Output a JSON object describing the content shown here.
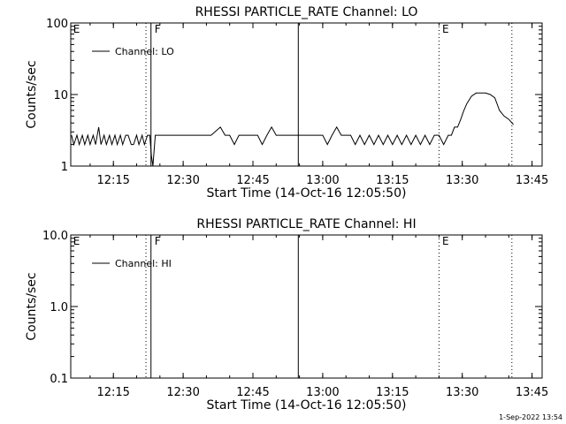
{
  "footer_date": "1-Sep-2022 13:54",
  "chart_data": [
    {
      "type": "line",
      "title": "RHESSI PARTICLE_RATE Channel: LO",
      "xlabel": "Start Time (14-Oct-16 12:05:50)",
      "ylabel": "Counts/sec",
      "yscale": "log",
      "ylim": [
        1,
        100
      ],
      "yticks": [
        {
          "value": 1,
          "label": "1"
        },
        {
          "value": 10,
          "label": "10"
        },
        {
          "value": 100,
          "label": "100"
        }
      ],
      "xlim": [
        "12:05:50",
        "13:47:10"
      ],
      "xticks": [
        "12:15",
        "12:30",
        "12:45",
        "13:00",
        "13:15",
        "13:30",
        "13:45"
      ],
      "legend": "top-left",
      "series": [
        {
          "name": "Channel: LO",
          "color": "#000000",
          "x": [
            "12:06:00",
            "12:06:30",
            "12:07:10",
            "12:07:40",
            "12:08:20",
            "12:08:50",
            "12:09:30",
            "12:10:00",
            "12:10:40",
            "12:11:10",
            "12:11:50",
            "12:12:20",
            "12:13:00",
            "12:13:30",
            "12:14:10",
            "12:14:40",
            "12:15:20",
            "12:15:50",
            "12:16:30",
            "12:17:00",
            "12:17:40",
            "12:18:10",
            "12:18:50",
            "12:19:20",
            "12:20:00",
            "12:20:30",
            "12:21:10",
            "12:21:40",
            "12:22:20",
            "12:22:50",
            "12:23:10",
            "12:23:30",
            "12:24:00",
            "12:30:00",
            "12:36:00",
            "12:38:00",
            "12:39:00",
            "12:40:00",
            "12:41:00",
            "12:42:00",
            "12:44:00",
            "12:46:00",
            "12:47:00",
            "12:48:00",
            "12:49:00",
            "12:50:00",
            "12:51:00",
            "12:52:00",
            "12:55:00",
            "13:00:00",
            "13:01:00",
            "13:02:00",
            "13:03:00",
            "13:04:00",
            "13:06:00",
            "13:07:00",
            "13:08:00",
            "13:09:00",
            "13:10:00",
            "13:11:00",
            "13:12:00",
            "13:13:00",
            "13:14:00",
            "13:15:00",
            "13:16:00",
            "13:17:00",
            "13:18:00",
            "13:19:00",
            "13:20:00",
            "13:21:00",
            "13:22:00",
            "13:23:00",
            "13:24:00",
            "13:25:00",
            "13:26:00",
            "13:27:00",
            "13:27:40",
            "13:28:20",
            "13:29:00",
            "13:29:40",
            "13:30:20",
            "13:31:00",
            "13:32:00",
            "13:33:00",
            "13:34:00",
            "13:35:00",
            "13:36:00",
            "13:37:00",
            "13:38:00",
            "13:39:00",
            "13:40:00",
            "13:41:00"
          ],
          "y": [
            2.7,
            2.0,
            2.7,
            2.0,
            2.7,
            2.0,
            2.7,
            2.0,
            2.7,
            2.0,
            3.5,
            2.0,
            2.7,
            2.0,
            2.7,
            2.0,
            2.7,
            2.0,
            2.7,
            2.0,
            2.7,
            2.7,
            2.0,
            2.0,
            2.7,
            2.0,
            2.7,
            2.0,
            2.7,
            2.7,
            1.4,
            1.0,
            2.7,
            2.7,
            2.7,
            3.5,
            2.7,
            2.7,
            2.0,
            2.7,
            2.7,
            2.7,
            2.0,
            2.7,
            3.5,
            2.7,
            2.7,
            2.7,
            2.7,
            2.7,
            2.0,
            2.7,
            3.5,
            2.7,
            2.7,
            2.0,
            2.7,
            2.0,
            2.7,
            2.0,
            2.7,
            2.0,
            2.7,
            2.0,
            2.7,
            2.0,
            2.7,
            2.0,
            2.7,
            2.0,
            2.7,
            2.0,
            2.7,
            2.7,
            2.0,
            2.7,
            2.7,
            3.5,
            3.5,
            4.5,
            6.0,
            7.5,
            9.5,
            10.5,
            10.5,
            10.5,
            10.0,
            9.0,
            6.0,
            5.0,
            4.5,
            3.8
          ]
        }
      ],
      "annotations": [
        {
          "label": "E",
          "x": "12:06:10"
        },
        {
          "label": "F",
          "x": "12:23:40"
        },
        {
          "label": "E",
          "x": "13:25:30"
        }
      ],
      "vlines": [
        {
          "x": "12:22:00",
          "style": "dotted"
        },
        {
          "x": "12:23:05",
          "style": "solid"
        },
        {
          "x": "12:54:45",
          "style": "solid"
        },
        {
          "x": "13:25:00",
          "style": "dotted"
        },
        {
          "x": "13:40:40",
          "style": "dotted"
        }
      ]
    },
    {
      "type": "line",
      "title": "RHESSI PARTICLE_RATE Channel: HI",
      "xlabel": "Start Time (14-Oct-16 12:05:50)",
      "ylabel": "Counts/sec",
      "yscale": "log",
      "ylim": [
        0.1,
        10
      ],
      "yticks": [
        {
          "value": 0.1,
          "label": "0.1"
        },
        {
          "value": 1,
          "label": "1.0"
        },
        {
          "value": 10,
          "label": "10.0"
        }
      ],
      "xlim": [
        "12:05:50",
        "13:47:10"
      ],
      "xticks": [
        "12:15",
        "12:30",
        "12:45",
        "13:00",
        "13:15",
        "13:30",
        "13:45"
      ],
      "legend": "top-left",
      "series": [
        {
          "name": "Channel: HI",
          "color": "#000000",
          "x": [],
          "y": []
        }
      ],
      "annotations": [
        {
          "label": "E",
          "x": "12:06:10"
        },
        {
          "label": "F",
          "x": "12:23:40"
        },
        {
          "label": "E",
          "x": "13:25:30"
        }
      ],
      "vlines": [
        {
          "x": "12:22:00",
          "style": "dotted"
        },
        {
          "x": "12:23:05",
          "style": "solid"
        },
        {
          "x": "12:54:45",
          "style": "solid"
        },
        {
          "x": "13:25:00",
          "style": "dotted"
        },
        {
          "x": "13:40:40",
          "style": "dotted"
        }
      ]
    }
  ]
}
